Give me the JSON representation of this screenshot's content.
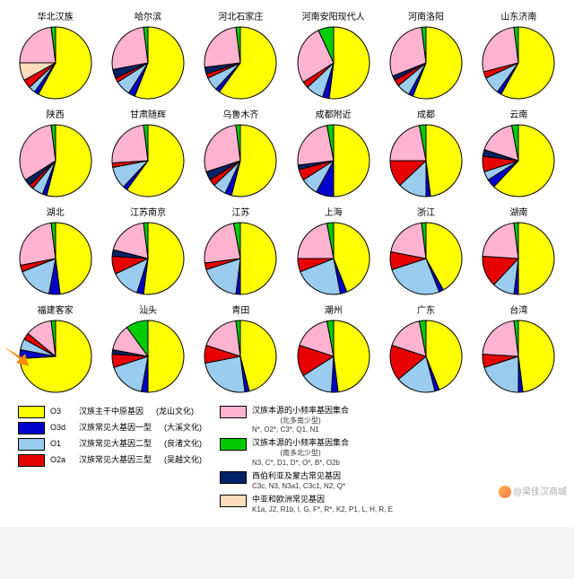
{
  "colors": {
    "O3_yellow": "#ffff00",
    "O3d_blue": "#0000cc",
    "O1_lightblue": "#99ccee",
    "O2a_red": "#e60000",
    "pink": "#ffb3d1",
    "green": "#00cc00",
    "darkblue": "#002266",
    "peach": "#ffddbb",
    "stroke": "#000000",
    "bg": "#ffffff"
  },
  "stroke_width": 1,
  "pie_radius": 40,
  "charts": [
    {
      "title": "华北汉族",
      "slices": [
        {
          "color": "O3_yellow",
          "value": 58
        },
        {
          "color": "O3d_blue",
          "value": 2
        },
        {
          "color": "O1_lightblue",
          "value": 3
        },
        {
          "color": "O2a_red",
          "value": 4
        },
        {
          "color": "peach",
          "value": 8
        },
        {
          "color": "pink",
          "value": 23
        },
        {
          "color": "green",
          "value": 2
        }
      ]
    },
    {
      "title": "哈尔滨",
      "slices": [
        {
          "color": "O3_yellow",
          "value": 56
        },
        {
          "color": "O3d_blue",
          "value": 3
        },
        {
          "color": "O1_lightblue",
          "value": 7
        },
        {
          "color": "O2a_red",
          "value": 2
        },
        {
          "color": "darkblue",
          "value": 4
        },
        {
          "color": "pink",
          "value": 26
        },
        {
          "color": "green",
          "value": 2
        }
      ]
    },
    {
      "title": "河北石家庄",
      "slices": [
        {
          "color": "O3_yellow",
          "value": 60
        },
        {
          "color": "O3d_blue",
          "value": 2
        },
        {
          "color": "O1_lightblue",
          "value": 6
        },
        {
          "color": "O2a_red",
          "value": 2
        },
        {
          "color": "darkblue",
          "value": 3
        },
        {
          "color": "pink",
          "value": 25
        },
        {
          "color": "green",
          "value": 2
        }
      ]
    },
    {
      "title": "河南安阳现代人",
      "slices": [
        {
          "color": "O3_yellow",
          "value": 52
        },
        {
          "color": "O3d_blue",
          "value": 3
        },
        {
          "color": "O1_lightblue",
          "value": 8
        },
        {
          "color": "O2a_red",
          "value": 3
        },
        {
          "color": "pink",
          "value": 27
        },
        {
          "color": "green",
          "value": 7
        }
      ]
    },
    {
      "title": "河南洛阳",
      "slices": [
        {
          "color": "O3_yellow",
          "value": 56
        },
        {
          "color": "O3d_blue",
          "value": 2
        },
        {
          "color": "O1_lightblue",
          "value": 6
        },
        {
          "color": "O2a_red",
          "value": 3
        },
        {
          "color": "darkblue",
          "value": 2
        },
        {
          "color": "pink",
          "value": 29
        },
        {
          "color": "green",
          "value": 2
        }
      ]
    },
    {
      "title": "山东济南",
      "slices": [
        {
          "color": "O3_yellow",
          "value": 58
        },
        {
          "color": "O3d_blue",
          "value": 2
        },
        {
          "color": "O1_lightblue",
          "value": 8
        },
        {
          "color": "O2a_red",
          "value": 3
        },
        {
          "color": "pink",
          "value": 27
        },
        {
          "color": "green",
          "value": 2
        }
      ]
    },
    {
      "title": "陕西",
      "slices": [
        {
          "color": "O3_yellow",
          "value": 54
        },
        {
          "color": "O3d_blue",
          "value": 2
        },
        {
          "color": "O1_lightblue",
          "value": 5
        },
        {
          "color": "O2a_red",
          "value": 2
        },
        {
          "color": "darkblue",
          "value": 3
        },
        {
          "color": "pink",
          "value": 32
        },
        {
          "color": "green",
          "value": 2
        }
      ]
    },
    {
      "title": "甘肃随辉",
      "slices": [
        {
          "color": "O3_yellow",
          "value": 60
        },
        {
          "color": "O3d_blue",
          "value": 2
        },
        {
          "color": "O1_lightblue",
          "value": 10
        },
        {
          "color": "O2a_red",
          "value": 2
        },
        {
          "color": "pink",
          "value": 24
        },
        {
          "color": "green",
          "value": 2
        }
      ]
    },
    {
      "title": "乌鲁木齐",
      "slices": [
        {
          "color": "O3_yellow",
          "value": 54
        },
        {
          "color": "O3d_blue",
          "value": 3
        },
        {
          "color": "O1_lightblue",
          "value": 6
        },
        {
          "color": "O2a_red",
          "value": 3
        },
        {
          "color": "darkblue",
          "value": 4
        },
        {
          "color": "pink",
          "value": 28
        },
        {
          "color": "green",
          "value": 2
        }
      ]
    },
    {
      "title": "成都附近",
      "slices": [
        {
          "color": "O3_yellow",
          "value": 50
        },
        {
          "color": "O3d_blue",
          "value": 8
        },
        {
          "color": "O1_lightblue",
          "value": 8
        },
        {
          "color": "O2a_red",
          "value": 5
        },
        {
          "color": "darkblue",
          "value": 2
        },
        {
          "color": "pink",
          "value": 24
        },
        {
          "color": "green",
          "value": 3
        }
      ]
    },
    {
      "title": "成都",
      "slices": [
        {
          "color": "O3_yellow",
          "value": 48
        },
        {
          "color": "O3d_blue",
          "value": 2
        },
        {
          "color": "O1_lightblue",
          "value": 13
        },
        {
          "color": "O2a_red",
          "value": 12
        },
        {
          "color": "pink",
          "value": 22
        },
        {
          "color": "green",
          "value": 3
        }
      ]
    },
    {
      "title": "云南",
      "slices": [
        {
          "color": "O3_yellow",
          "value": 62
        },
        {
          "color": "O3d_blue",
          "value": 4
        },
        {
          "color": "O1_lightblue",
          "value": 4
        },
        {
          "color": "O2a_red",
          "value": 7
        },
        {
          "color": "darkblue",
          "value": 3
        },
        {
          "color": "pink",
          "value": 17
        },
        {
          "color": "green",
          "value": 3
        }
      ]
    },
    {
      "title": "湖北",
      "slices": [
        {
          "color": "O3_yellow",
          "value": 48
        },
        {
          "color": "O3d_blue",
          "value": 5
        },
        {
          "color": "O1_lightblue",
          "value": 16
        },
        {
          "color": "O2a_red",
          "value": 3
        },
        {
          "color": "pink",
          "value": 26
        },
        {
          "color": "green",
          "value": 2
        }
      ]
    },
    {
      "title": "江苏南京",
      "slices": [
        {
          "color": "O3_yellow",
          "value": 52
        },
        {
          "color": "O3d_blue",
          "value": 3
        },
        {
          "color": "O1_lightblue",
          "value": 13
        },
        {
          "color": "O2a_red",
          "value": 8
        },
        {
          "color": "darkblue",
          "value": 3
        },
        {
          "color": "pink",
          "value": 19
        },
        {
          "color": "green",
          "value": 2
        }
      ]
    },
    {
      "title": "江苏",
      "slices": [
        {
          "color": "O3_yellow",
          "value": 50
        },
        {
          "color": "O3d_blue",
          "value": 2
        },
        {
          "color": "O1_lightblue",
          "value": 18
        },
        {
          "color": "O2a_red",
          "value": 3
        },
        {
          "color": "pink",
          "value": 24
        },
        {
          "color": "green",
          "value": 3
        }
      ]
    },
    {
      "title": "上海",
      "slices": [
        {
          "color": "O3_yellow",
          "value": 44
        },
        {
          "color": "O3d_blue",
          "value": 3
        },
        {
          "color": "O1_lightblue",
          "value": 22
        },
        {
          "color": "O2a_red",
          "value": 6
        },
        {
          "color": "pink",
          "value": 22
        },
        {
          "color": "green",
          "value": 3
        }
      ]
    },
    {
      "title": "浙江",
      "slices": [
        {
          "color": "O3_yellow",
          "value": 42
        },
        {
          "color": "O3d_blue",
          "value": 2
        },
        {
          "color": "O1_lightblue",
          "value": 26
        },
        {
          "color": "O2a_red",
          "value": 8
        },
        {
          "color": "pink",
          "value": 20
        },
        {
          "color": "green",
          "value": 2
        }
      ]
    },
    {
      "title": "湖南",
      "slices": [
        {
          "color": "O3_yellow",
          "value": 50
        },
        {
          "color": "O3d_blue",
          "value": 2
        },
        {
          "color": "O1_lightblue",
          "value": 10
        },
        {
          "color": "O2a_red",
          "value": 14
        },
        {
          "color": "pink",
          "value": 22
        },
        {
          "color": "green",
          "value": 2
        }
      ]
    },
    {
      "title": "福建客家",
      "slices": [
        {
          "color": "O3_yellow",
          "value": 74
        },
        {
          "color": "O3d_blue",
          "value": 4
        },
        {
          "color": "O1_lightblue",
          "value": 5
        },
        {
          "color": "O2a_red",
          "value": 3
        },
        {
          "color": "pink",
          "value": 12
        },
        {
          "color": "green",
          "value": 2
        }
      ]
    },
    {
      "title": "汕头",
      "slices": [
        {
          "color": "O3_yellow",
          "value": 50
        },
        {
          "color": "O3d_blue",
          "value": 3
        },
        {
          "color": "O1_lightblue",
          "value": 17
        },
        {
          "color": "O2a_red",
          "value": 6
        },
        {
          "color": "darkblue",
          "value": 2
        },
        {
          "color": "pink",
          "value": 12
        },
        {
          "color": "green",
          "value": 10
        }
      ]
    },
    {
      "title": "青田",
      "slices": [
        {
          "color": "O3_yellow",
          "value": 46
        },
        {
          "color": "O3d_blue",
          "value": 2
        },
        {
          "color": "O1_lightblue",
          "value": 24
        },
        {
          "color": "O2a_red",
          "value": 8
        },
        {
          "color": "pink",
          "value": 18
        },
        {
          "color": "green",
          "value": 2
        }
      ]
    },
    {
      "title": "潮州",
      "slices": [
        {
          "color": "O3_yellow",
          "value": 48
        },
        {
          "color": "O3d_blue",
          "value": 3
        },
        {
          "color": "O1_lightblue",
          "value": 15
        },
        {
          "color": "O2a_red",
          "value": 14
        },
        {
          "color": "pink",
          "value": 17
        },
        {
          "color": "green",
          "value": 3
        }
      ]
    },
    {
      "title": "广东",
      "slices": [
        {
          "color": "O3_yellow",
          "value": 44
        },
        {
          "color": "O3d_blue",
          "value": 2
        },
        {
          "color": "O1_lightblue",
          "value": 18
        },
        {
          "color": "O2a_red",
          "value": 16
        },
        {
          "color": "pink",
          "value": 17
        },
        {
          "color": "green",
          "value": 3
        }
      ]
    },
    {
      "title": "台湾",
      "slices": [
        {
          "color": "O3_yellow",
          "value": 48
        },
        {
          "color": "O3d_blue",
          "value": 2
        },
        {
          "color": "O1_lightblue",
          "value": 20
        },
        {
          "color": "O2a_red",
          "value": 6
        },
        {
          "color": "pink",
          "value": 22
        },
        {
          "color": "green",
          "value": 2
        }
      ]
    }
  ],
  "legend_left": [
    {
      "color": "O3_yellow",
      "code": "O3",
      "label": "汉族主干中原基因",
      "culture": "(龙山文化)"
    },
    {
      "color": "O3d_blue",
      "code": "O3d",
      "label": "汉族常见大基因一型",
      "culture": "(大溪文化)"
    },
    {
      "color": "O1_lightblue",
      "code": "O1",
      "label": "汉族常见大基因二型",
      "culture": "(良渚文化)"
    },
    {
      "color": "O2a_red",
      "code": "O2a",
      "label": "汉族常见大基因三型",
      "culture": "(吴越文化)"
    }
  ],
  "legend_right": [
    {
      "color": "pink",
      "label": "汉族本源的小频率基因集合",
      "sub1": "(北多南少型)",
      "sub2": "N*, O2*, C3*, Q1, N1"
    },
    {
      "color": "green",
      "label": "汉族本源的小频率基因集合",
      "sub1": "(南多北少型)",
      "sub2": "N3, C*, D1, D*, O*, B*, O2b"
    },
    {
      "color": "darkblue",
      "label": "西伯利亚及蒙古常见基因",
      "sub1": "",
      "sub2": "C3c, N3, N3a1, C3c1, N2, Q*"
    },
    {
      "color": "peach",
      "label": "中亚和欧洲常见基因",
      "sub1": "",
      "sub2": "K1a, J2, R1b, I, G, F*, R*, K2, P1, L, H, R, E"
    }
  ],
  "watermark": "@梁佳汉商城",
  "arrow_color": "#ff8c00"
}
